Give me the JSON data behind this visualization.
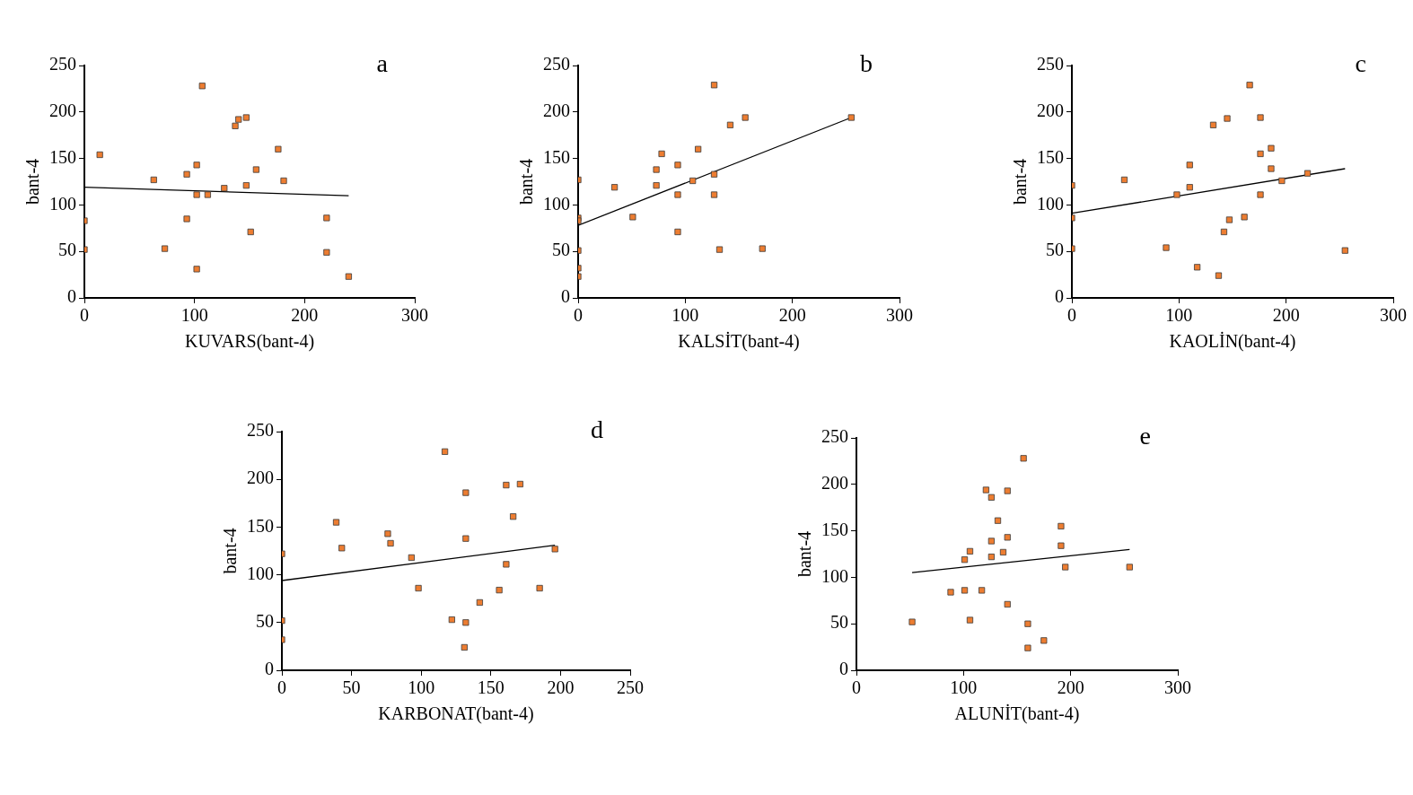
{
  "chart_data": [
    {
      "type": "scatter",
      "xlabel": "KUVARS(bant-4)",
      "ylabel": "bant-4",
      "annotations": [
        "a"
      ],
      "xlim": [
        0,
        300
      ],
      "xticks": [
        0,
        100,
        200,
        300
      ],
      "ylim": [
        0,
        250
      ],
      "yticks": [
        0,
        50,
        100,
        150,
        200,
        250
      ],
      "grid": false,
      "legend": false,
      "marker": "square",
      "series": [
        {
          "color": "#ed7d31",
          "x": [
            0,
            0,
            14,
            63,
            93,
            93,
            102,
            102,
            112,
            107,
            73,
            102,
            127,
            137,
            140,
            147,
            147,
            156,
            151,
            176,
            181,
            220,
            220,
            240
          ],
          "values": [
            83,
            52,
            154,
            127,
            133,
            85,
            143,
            111,
            111,
            228,
            53,
            31,
            118,
            185,
            192,
            194,
            121,
            138,
            71,
            160,
            126,
            86,
            49,
            23
          ]
        },
        {
          "type": "line",
          "marker": "none",
          "color": "#000000",
          "x": [
            0,
            240
          ],
          "values": [
            119,
            110
          ]
        }
      ]
    },
    {
      "type": "scatter",
      "xlabel": "KALSİT(bant-4)",
      "ylabel": "bant-4",
      "annotations": [
        "b"
      ],
      "xlim": [
        0,
        300
      ],
      "xticks": [
        0,
        100,
        200,
        300
      ],
      "ylim": [
        0,
        250
      ],
      "yticks": [
        0,
        50,
        100,
        150,
        200,
        250
      ],
      "grid": false,
      "legend": false,
      "marker": "square",
      "series": [
        {
          "color": "#ed7d31",
          "x": [
            0,
            0,
            0,
            0,
            0,
            0,
            34,
            51,
            73,
            73,
            78,
            93,
            93,
            93,
            107,
            112,
            127,
            127,
            127,
            132,
            142,
            156,
            172,
            255
          ],
          "values": [
            127,
            86,
            83,
            51,
            32,
            23,
            119,
            87,
            138,
            121,
            155,
            143,
            111,
            71,
            126,
            160,
            229,
            133,
            111,
            52,
            186,
            194,
            53,
            194
          ]
        },
        {
          "type": "line",
          "marker": "none",
          "color": "#000000",
          "x": [
            0,
            255
          ],
          "values": [
            78,
            194
          ]
        }
      ]
    },
    {
      "type": "scatter",
      "xlabel": "KAOLİN(bant-4)",
      "ylabel": "bant-4",
      "annotations": [
        "c"
      ],
      "xlim": [
        0,
        300
      ],
      "xticks": [
        0,
        100,
        200,
        300
      ],
      "ylim": [
        0,
        250
      ],
      "yticks": [
        0,
        50,
        100,
        150,
        200,
        250
      ],
      "grid": false,
      "legend": false,
      "marker": "square",
      "series": [
        {
          "color": "#ed7d31",
          "x": [
            0,
            0,
            0,
            49,
            88,
            98,
            110,
            110,
            117,
            132,
            137,
            142,
            145,
            147,
            161,
            166,
            176,
            176,
            176,
            186,
            186,
            196,
            220,
            255
          ],
          "values": [
            121,
            86,
            53,
            127,
            54,
            111,
            143,
            119,
            33,
            186,
            24,
            71,
            193,
            84,
            87,
            229,
            194,
            155,
            111,
            161,
            139,
            126,
            134,
            51
          ]
        },
        {
          "type": "line",
          "marker": "none",
          "color": "#000000",
          "x": [
            0,
            255
          ],
          "values": [
            91,
            139
          ]
        }
      ]
    },
    {
      "type": "scatter",
      "xlabel": "KARBONAT(bant-4)",
      "ylabel": "bant-4",
      "annotations": [
        "d"
      ],
      "xlim": [
        0,
        250
      ],
      "xticks": [
        0,
        50,
        100,
        150,
        200,
        250
      ],
      "ylim": [
        0,
        250
      ],
      "yticks": [
        0,
        50,
        100,
        150,
        200,
        250
      ],
      "grid": false,
      "legend": false,
      "marker": "square",
      "series": [
        {
          "color": "#ed7d31",
          "x": [
            0,
            0,
            0,
            39,
            43,
            76,
            78,
            93,
            98,
            117,
            122,
            132,
            132,
            132,
            131,
            142,
            156,
            161,
            161,
            166,
            171,
            185,
            196
          ],
          "values": [
            122,
            52,
            32,
            155,
            128,
            143,
            133,
            118,
            86,
            229,
            53,
            186,
            138,
            50,
            24,
            71,
            84,
            194,
            111,
            161,
            195,
            86,
            127
          ]
        },
        {
          "type": "line",
          "marker": "none",
          "color": "#000000",
          "x": [
            0,
            196
          ],
          "values": [
            94,
            131
          ]
        }
      ]
    },
    {
      "type": "scatter",
      "xlabel": "ALUNİT(bant-4)",
      "ylabel": "bant-4",
      "annotations": [
        "e"
      ],
      "xlim": [
        0,
        300
      ],
      "xticks": [
        0,
        100,
        200,
        300
      ],
      "ylim": [
        0,
        250
      ],
      "yticks": [
        0,
        50,
        100,
        150,
        200,
        250
      ],
      "grid": false,
      "legend": false,
      "marker": "square",
      "series": [
        {
          "color": "#ed7d31",
          "x": [
            52,
            88,
            101,
            101,
            106,
            106,
            117,
            121,
            126,
            126,
            126,
            132,
            137,
            141,
            141,
            141,
            156,
            160,
            160,
            175,
            191,
            191,
            195,
            255
          ],
          "values": [
            52,
            84,
            86,
            119,
            128,
            54,
            86,
            194,
            186,
            139,
            122,
            161,
            127,
            193,
            143,
            71,
            228,
            50,
            24,
            32,
            155,
            134,
            111,
            111
          ]
        },
        {
          "type": "line",
          "marker": "none",
          "color": "#000000",
          "x": [
            52,
            255
          ],
          "values": [
            105,
            130
          ]
        }
      ]
    }
  ]
}
